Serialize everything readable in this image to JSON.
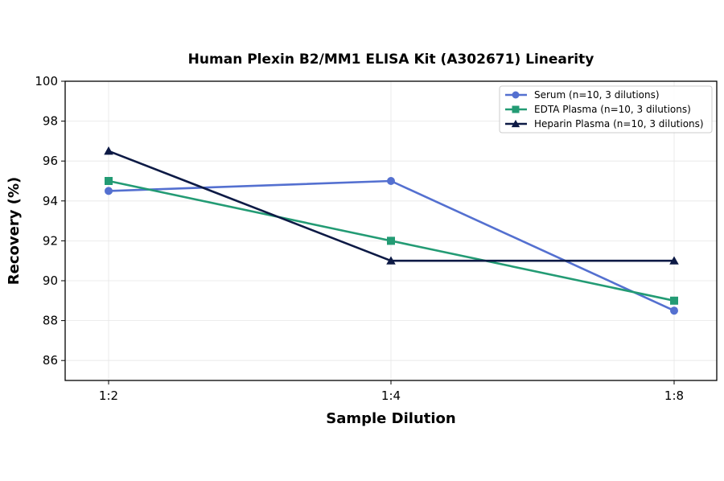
{
  "chart_data": {
    "type": "line",
    "title": "Human Plexin B2/MM1 ELISA Kit (A302671) Linearity",
    "xlabel": "Sample Dilution",
    "ylabel": "Recovery (%)",
    "categories": [
      "1:2",
      "1:4",
      "1:8"
    ],
    "ylim": [
      85,
      100
    ],
    "yticks": [
      86,
      88,
      90,
      92,
      94,
      96,
      98,
      100
    ],
    "grid": true,
    "legend_position": "top-right",
    "series": [
      {
        "name": "Serum (n=10, 3 dilutions)",
        "values": [
          94.5,
          95.0,
          88.5
        ],
        "color": "#5470d0",
        "marker": "circle"
      },
      {
        "name": "EDTA Plasma (n=10, 3 dilutions)",
        "values": [
          95.0,
          92.0,
          89.0
        ],
        "color": "#239b74",
        "marker": "square"
      },
      {
        "name": "Heparin Plasma (n=10, 3 dilutions)",
        "values": [
          96.5,
          91.0,
          91.0
        ],
        "color": "#0d1a45",
        "marker": "triangle"
      }
    ]
  }
}
